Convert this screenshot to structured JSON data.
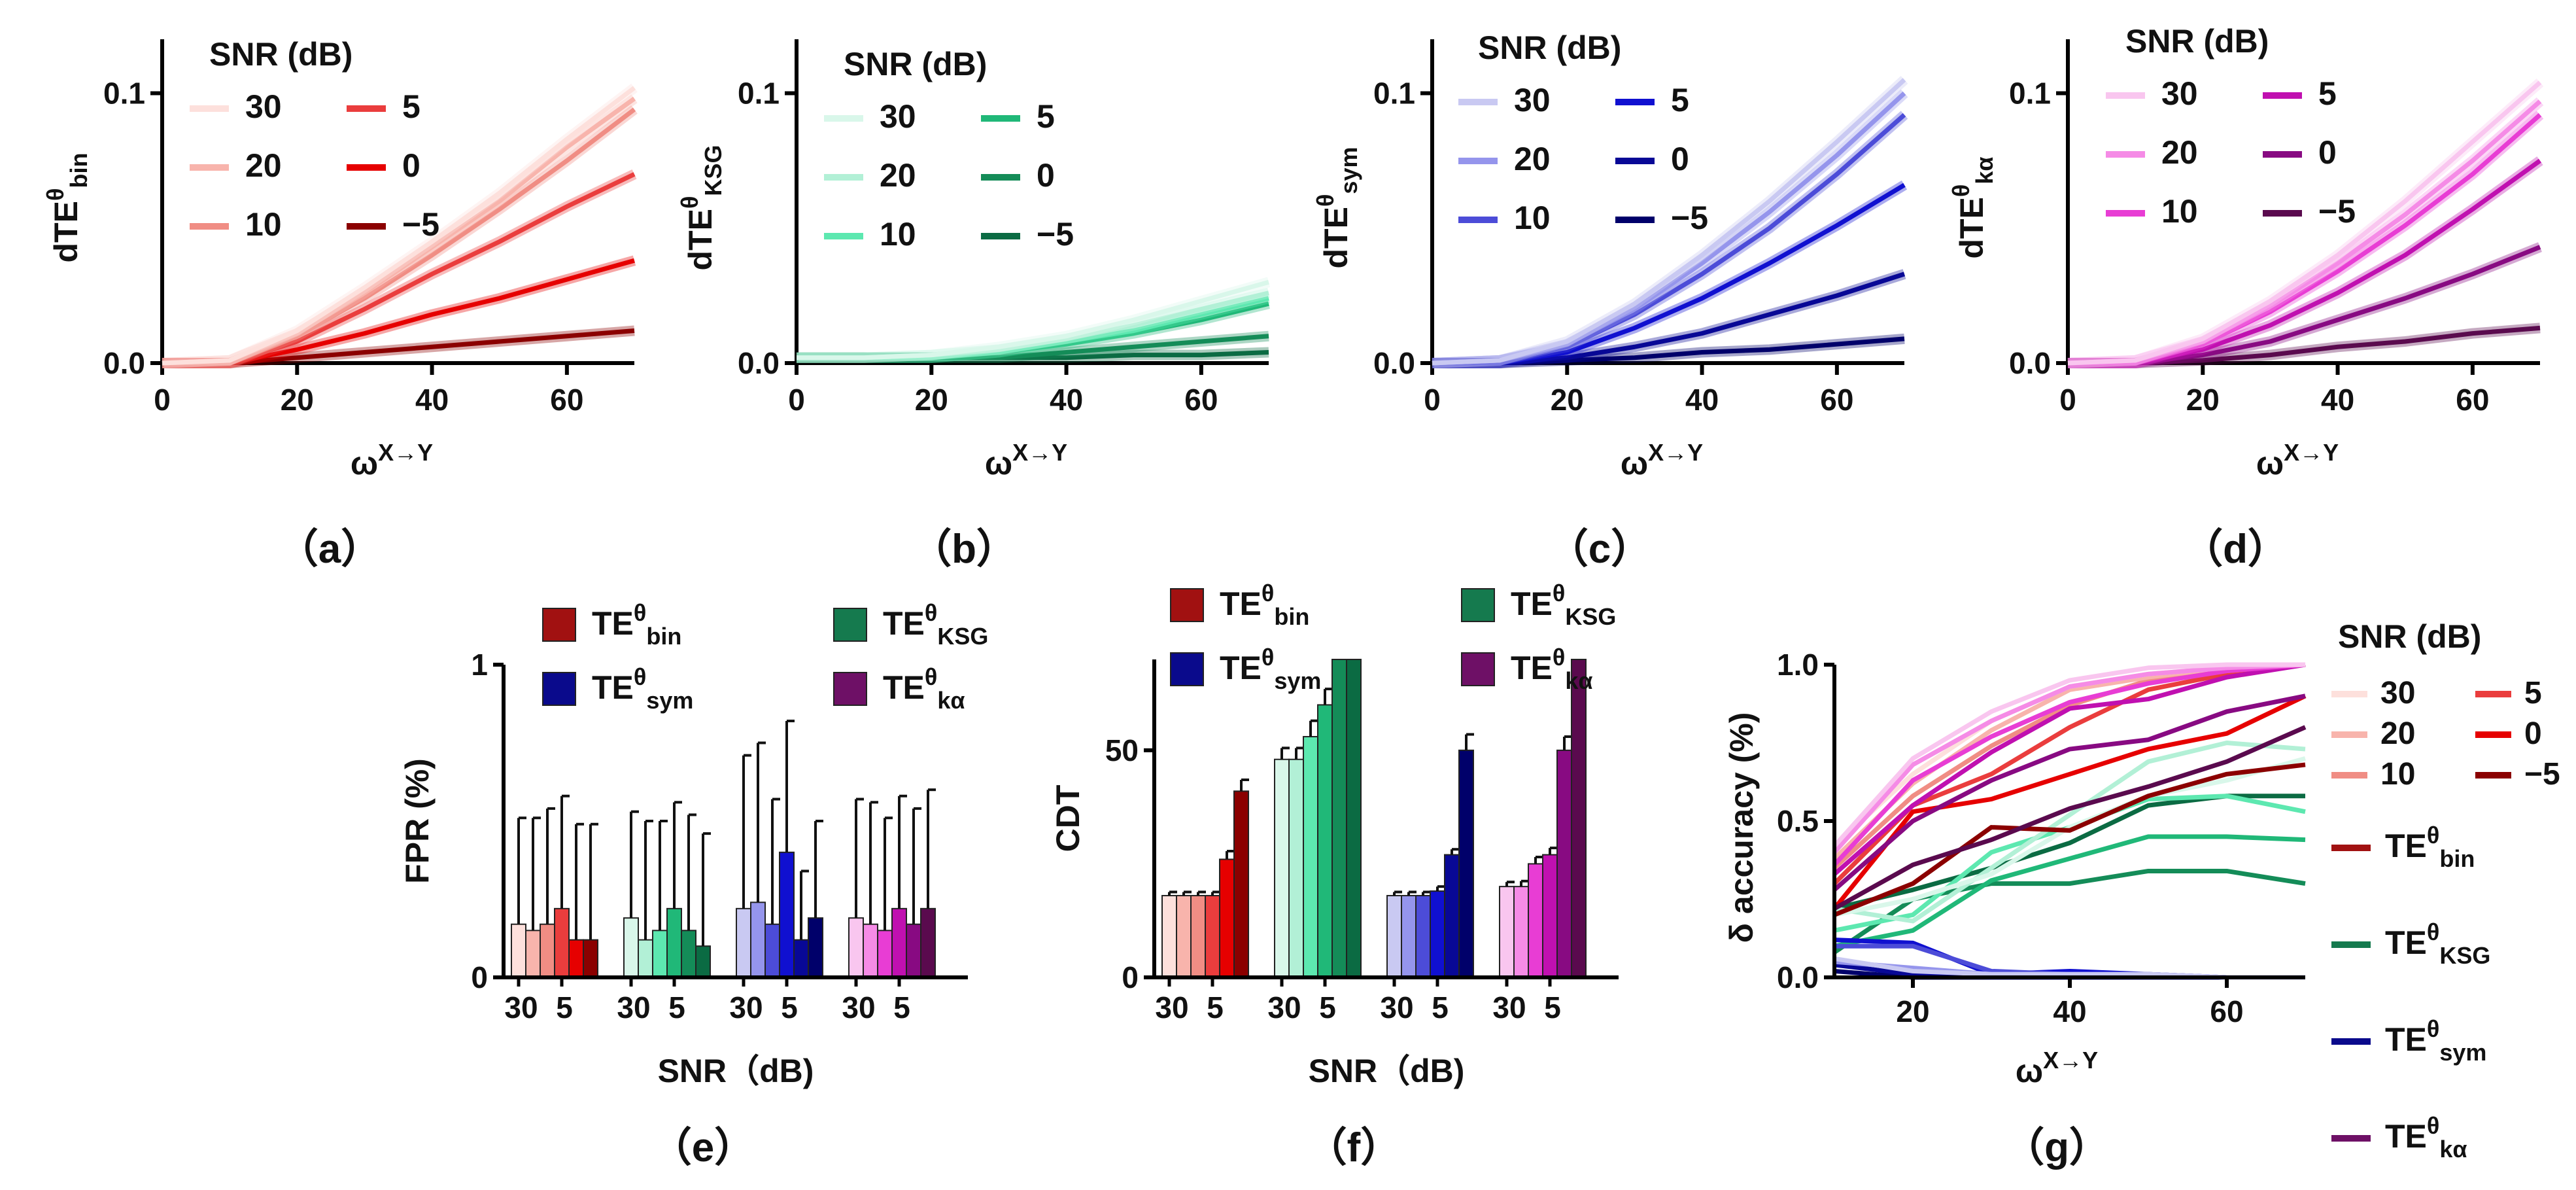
{
  "colors": {
    "bin": [
      "#fde0dc",
      "#f8b4ac",
      "#f08d84",
      "#ea3d3d",
      "#e60000",
      "#8b0000"
    ],
    "ksg": [
      "#d9f7ea",
      "#b2f0d6",
      "#5de8b0",
      "#20b878",
      "#148c58",
      "#0b6b43"
    ],
    "sym": [
      "#c9c9f2",
      "#9595ec",
      "#4c4cd8",
      "#1010d0",
      "#080896",
      "#00006a"
    ],
    "ka": [
      "#f9c6ef",
      "#f58be6",
      "#e83dd4",
      "#c010b0",
      "#880a82",
      "#5a0a4e"
    ],
    "method": {
      "bin": "#a11111",
      "ksg": "#157a4e",
      "sym": "#0a0a8c",
      "ka": "#6e1066"
    }
  },
  "snr_levels": [
    "30",
    "20",
    "10",
    "5",
    "0",
    "−5"
  ],
  "snr_title": "SNR (dB)",
  "panels_top": [
    {
      "id": "a",
      "label": "（a）",
      "ylabel_main": "dTE",
      "ylabel_sup": "θ",
      "ylabel_sub": "bin",
      "palette": "bin",
      "xlabel_main": "ω",
      "xlabel_sup": "X→Y",
      "ylim": [
        0,
        0.12
      ],
      "xlim": [
        0,
        70
      ],
      "yticks": [
        "0.0",
        "0.1"
      ],
      "xticks": [
        "0",
        "20",
        "40",
        "60"
      ],
      "x": [
        0,
        10,
        20,
        30,
        40,
        50,
        60,
        70
      ],
      "series": [
        [
          0,
          0.001,
          0.012,
          0.028,
          0.045,
          0.063,
          0.083,
          0.102
        ],
        [
          0,
          0.001,
          0.011,
          0.026,
          0.043,
          0.06,
          0.08,
          0.098
        ],
        [
          0,
          0.0,
          0.01,
          0.024,
          0.04,
          0.057,
          0.075,
          0.094
        ],
        [
          0,
          0.0,
          0.008,
          0.02,
          0.033,
          0.045,
          0.058,
          0.07
        ],
        [
          0,
          0.0,
          0.005,
          0.011,
          0.018,
          0.024,
          0.031,
          0.038
        ],
        [
          0,
          0.0,
          0.002,
          0.004,
          0.006,
          0.008,
          0.01,
          0.012
        ]
      ]
    },
    {
      "id": "b",
      "label": "（b）",
      "ylabel_main": "dTE",
      "ylabel_sup": "θ",
      "ylabel_sub": "KSG",
      "palette": "ksg",
      "xlabel_main": "ω",
      "xlabel_sup": "X→Y",
      "ylim": [
        0,
        0.12
      ],
      "xlim": [
        0,
        70
      ],
      "yticks": [
        "0.0",
        "0.1"
      ],
      "xticks": [
        "0",
        "20",
        "40",
        "60"
      ],
      "x": [
        0,
        10,
        20,
        30,
        40,
        50,
        60,
        70
      ],
      "series": [
        [
          0.002,
          0.002,
          0.003,
          0.006,
          0.01,
          0.016,
          0.023,
          0.03
        ],
        [
          0.002,
          0.002,
          0.003,
          0.005,
          0.009,
          0.014,
          0.02,
          0.026
        ],
        [
          0.002,
          0.002,
          0.002,
          0.004,
          0.008,
          0.012,
          0.018,
          0.024
        ],
        [
          0.002,
          0.002,
          0.002,
          0.004,
          0.007,
          0.011,
          0.016,
          0.022
        ],
        [
          0.002,
          0.002,
          0.002,
          0.002,
          0.004,
          0.006,
          0.008,
          0.01
        ],
        [
          0.002,
          0.002,
          0.002,
          0.002,
          0.002,
          0.003,
          0.003,
          0.004
        ]
      ]
    },
    {
      "id": "c",
      "label": "（c）",
      "ylabel_main": "dTE",
      "ylabel_sup": "θ",
      "ylabel_sub": "sym",
      "palette": "sym",
      "xlabel_main": "ω",
      "xlabel_sup": "X→Y",
      "ylim": [
        0,
        0.12
      ],
      "xlim": [
        0,
        70
      ],
      "yticks": [
        "0.0",
        "0.1"
      ],
      "xticks": [
        "0",
        "20",
        "40",
        "60"
      ],
      "x": [
        0,
        10,
        20,
        30,
        40,
        50,
        60,
        70
      ],
      "series": [
        [
          0,
          0.001,
          0.008,
          0.022,
          0.04,
          0.06,
          0.082,
          0.105
        ],
        [
          0,
          0.001,
          0.007,
          0.02,
          0.037,
          0.056,
          0.077,
          0.1
        ],
        [
          0,
          0.001,
          0.006,
          0.018,
          0.033,
          0.05,
          0.07,
          0.092
        ],
        [
          0,
          0.0,
          0.004,
          0.013,
          0.024,
          0.037,
          0.051,
          0.066
        ],
        [
          0,
          0.0,
          0.002,
          0.006,
          0.011,
          0.018,
          0.025,
          0.033
        ],
        [
          0,
          0.0,
          0.001,
          0.002,
          0.004,
          0.005,
          0.007,
          0.009
        ]
      ]
    },
    {
      "id": "d",
      "label": "（d）",
      "ylabel_main": "dTE",
      "ylabel_sup": "θ",
      "ylabel_sub": "kα",
      "palette": "ka",
      "xlabel_main": "ω",
      "xlabel_sup": "X→Y",
      "ylim": [
        0,
        0.12
      ],
      "xlim": [
        0,
        70
      ],
      "yticks": [
        "0.0",
        "0.1"
      ],
      "xticks": [
        "0",
        "20",
        "40",
        "60"
      ],
      "x": [
        0,
        10,
        20,
        30,
        40,
        50,
        60,
        70
      ],
      "series": [
        [
          0,
          0.001,
          0.009,
          0.023,
          0.04,
          0.06,
          0.082,
          0.104
        ],
        [
          0,
          0.001,
          0.008,
          0.021,
          0.037,
          0.055,
          0.075,
          0.097
        ],
        [
          0,
          0.0,
          0.007,
          0.019,
          0.034,
          0.051,
          0.07,
          0.092
        ],
        [
          0,
          0.0,
          0.005,
          0.014,
          0.026,
          0.04,
          0.057,
          0.075
        ],
        [
          0,
          0.0,
          0.003,
          0.008,
          0.016,
          0.024,
          0.033,
          0.043
        ],
        [
          0,
          0.0,
          0.001,
          0.003,
          0.006,
          0.008,
          0.011,
          0.013
        ]
      ]
    }
  ],
  "method_legend": [
    {
      "key": "bin",
      "main": "TE",
      "sup": "θ",
      "sub": "bin"
    },
    {
      "key": "ksg",
      "main": "TE",
      "sup": "θ",
      "sub": "KSG"
    },
    {
      "key": "sym",
      "main": "TE",
      "sup": "θ",
      "sub": "sym"
    },
    {
      "key": "ka",
      "main": "TE",
      "sup": "θ",
      "sub": "kα"
    }
  ],
  "panel_e": {
    "label": "（e）",
    "ylabel": "FPR (%)",
    "xlabel": "SNR（dB)",
    "ylim": [
      0,
      1
    ],
    "yticks": [
      "0",
      "1"
    ],
    "group_ticks": [
      "30",
      "5"
    ],
    "values": {
      "bin": [
        0.17,
        0.15,
        0.17,
        0.22,
        0.12,
        0.12
      ],
      "ksg": [
        0.19,
        0.12,
        0.15,
        0.22,
        0.15,
        0.1
      ],
      "sym": [
        0.22,
        0.24,
        0.17,
        0.4,
        0.12,
        0.19
      ],
      "ka": [
        0.19,
        0.17,
        0.15,
        0.22,
        0.17,
        0.22
      ]
    },
    "errors": {
      "bin": [
        0.34,
        0.36,
        0.37,
        0.36,
        0.37,
        0.37
      ],
      "ksg": [
        0.34,
        0.38,
        0.35,
        0.34,
        0.37,
        0.36
      ],
      "sym": [
        0.49,
        0.51,
        0.4,
        0.42,
        0.22,
        0.31
      ],
      "ka": [
        0.38,
        0.39,
        0.36,
        0.36,
        0.37,
        0.38
      ]
    }
  },
  "panel_f": {
    "label": "（f）",
    "ylabel": "CDT",
    "xlabel": "SNR（dB)",
    "ylim": [
      0,
      70
    ],
    "yticks": [
      "0",
      "50"
    ],
    "group_ticks": [
      "30",
      "5"
    ],
    "values": {
      "bin": [
        18,
        18,
        18,
        18,
        26,
        41
      ],
      "ksg": [
        48,
        48,
        53,
        60,
        70,
        70
      ],
      "sym": [
        18,
        18,
        18,
        19,
        27,
        50
      ],
      "ka": [
        20,
        20,
        25,
        27,
        50,
        70
      ]
    },
    "errors": {
      "bin": [
        0.8,
        0.8,
        0.8,
        0.8,
        1.8,
        2.5
      ],
      "ksg": [
        2.5,
        2.5,
        3.5,
        3.5,
        0,
        0
      ],
      "sym": [
        0.8,
        0.8,
        0.8,
        1,
        1.2,
        3.5
      ],
      "ka": [
        1,
        1.2,
        1.5,
        1.5,
        3,
        0
      ]
    }
  },
  "panel_g": {
    "label": "（g）",
    "ylabel": "δ accuracy (%)",
    "xlabel_main": "ω",
    "xlabel_sup": "X→Y",
    "xlim": [
      10,
      70
    ],
    "ylim": [
      0,
      1
    ],
    "yticks": [
      "0.0",
      "0.5",
      "1.0"
    ],
    "xticks": [
      "20",
      "40",
      "60"
    ],
    "x": [
      10,
      20,
      30,
      40,
      50,
      60,
      70
    ],
    "series": {
      "bin": [
        [
          0.42,
          0.65,
          0.82,
          0.93,
          0.97,
          0.99,
          1.0
        ],
        [
          0.38,
          0.62,
          0.79,
          0.92,
          0.96,
          0.99,
          1.0
        ],
        [
          0.35,
          0.58,
          0.74,
          0.87,
          0.95,
          0.98,
          1.0
        ],
        [
          0.3,
          0.55,
          0.65,
          0.8,
          0.92,
          0.97,
          1.0
        ],
        [
          0.22,
          0.53,
          0.57,
          0.65,
          0.73,
          0.78,
          0.9
        ],
        [
          0.2,
          0.3,
          0.48,
          0.47,
          0.58,
          0.65,
          0.68
        ]
      ],
      "ksg": [
        [
          0.2,
          0.25,
          0.33,
          0.48,
          0.58,
          0.63,
          0.7
        ],
        [
          0.22,
          0.18,
          0.35,
          0.52,
          0.69,
          0.75,
          0.73
        ],
        [
          0.15,
          0.2,
          0.4,
          0.48,
          0.57,
          0.58,
          0.53
        ],
        [
          0.1,
          0.15,
          0.31,
          0.38,
          0.45,
          0.45,
          0.44
        ],
        [
          0.08,
          0.25,
          0.3,
          0.3,
          0.34,
          0.34,
          0.3
        ],
        [
          0.22,
          0.28,
          0.35,
          0.43,
          0.55,
          0.58,
          0.58
        ]
      ],
      "sym": [
        [
          0.06,
          0.02,
          0.01,
          0.01,
          0.01,
          0.0,
          0.0
        ],
        [
          0.05,
          0.03,
          0.01,
          0.01,
          0.01,
          0.0,
          0.0
        ],
        [
          0.1,
          0.1,
          0.02,
          0.01,
          0.01,
          0.0,
          0.0
        ],
        [
          0.12,
          0.11,
          0.01,
          0.02,
          0.01,
          0.0,
          0.0
        ],
        [
          0.04,
          0.01,
          0.0,
          0.0,
          0.0,
          0.0,
          0.0
        ],
        [
          0.02,
          0.0,
          0.0,
          0.0,
          0.0,
          0.0,
          0.0
        ]
      ],
      "ka": [
        [
          0.42,
          0.7,
          0.85,
          0.95,
          0.99,
          1.0,
          1.0
        ],
        [
          0.4,
          0.68,
          0.82,
          0.93,
          0.97,
          0.99,
          1.0
        ],
        [
          0.36,
          0.63,
          0.77,
          0.88,
          0.94,
          0.98,
          1.0
        ],
        [
          0.33,
          0.55,
          0.72,
          0.86,
          0.89,
          0.96,
          1.0
        ],
        [
          0.28,
          0.5,
          0.63,
          0.73,
          0.76,
          0.85,
          0.9
        ],
        [
          0.22,
          0.36,
          0.44,
          0.54,
          0.61,
          0.69,
          0.8
        ]
      ]
    }
  },
  "chart_data": [
    {
      "type": "line",
      "title": "(a)",
      "xlabel": "ωX→Y",
      "ylabel": "dTEθbin",
      "legend_title": "SNR (dB)",
      "series_names": [
        "30",
        "20",
        "10",
        "5",
        "0",
        "−5"
      ],
      "ylim": [
        0,
        0.12
      ],
      "xlim": [
        0,
        70
      ]
    },
    {
      "type": "line",
      "title": "(b)",
      "xlabel": "ωX→Y",
      "ylabel": "dTEθKSG",
      "legend_title": "SNR (dB)",
      "series_names": [
        "30",
        "20",
        "10",
        "5",
        "0",
        "−5"
      ],
      "ylim": [
        0,
        0.12
      ],
      "xlim": [
        0,
        70
      ]
    },
    {
      "type": "line",
      "title": "(c)",
      "xlabel": "ωX→Y",
      "ylabel": "dTEθsym",
      "legend_title": "SNR (dB)",
      "series_names": [
        "30",
        "20",
        "10",
        "5",
        "0",
        "−5"
      ],
      "ylim": [
        0,
        0.12
      ],
      "xlim": [
        0,
        70
      ]
    },
    {
      "type": "line",
      "title": "(d)",
      "xlabel": "ωX→Y",
      "ylabel": "dTEθkα",
      "legend_title": "SNR (dB)",
      "series_names": [
        "30",
        "20",
        "10",
        "5",
        "0",
        "−5"
      ],
      "ylim": [
        0,
        0.12
      ],
      "xlim": [
        0,
        70
      ]
    },
    {
      "type": "bar",
      "title": "(e)",
      "xlabel": "SNR（dB)",
      "ylabel": "FPR (%)",
      "ylim": [
        0,
        1
      ]
    },
    {
      "type": "bar",
      "title": "(f)",
      "xlabel": "SNR（dB)",
      "ylabel": "CDT",
      "ylim": [
        0,
        70
      ]
    },
    {
      "type": "line",
      "title": "(g)",
      "xlabel": "ωX→Y",
      "ylabel": "δ accuracy (%)",
      "ylim": [
        0,
        1
      ],
      "xlim": [
        10,
        70
      ]
    }
  ]
}
